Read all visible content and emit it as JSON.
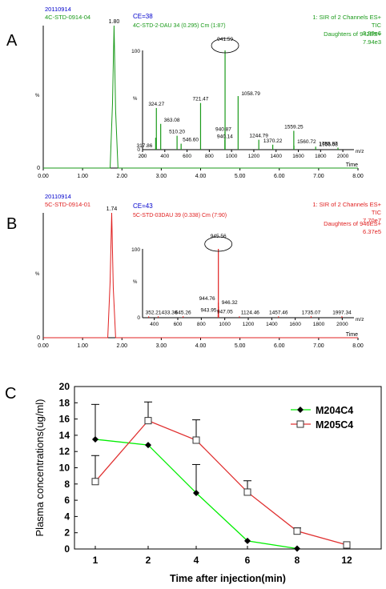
{
  "chart_data": [
    {
      "type": "line",
      "panel_label": "A",
      "date": "20110914",
      "sample": "4C-STD-0914-04",
      "channel": "1: SIR of 2 Channels ES+",
      "trace": "TIC",
      "intensity": "9.99e6",
      "ylabel": "%",
      "xlabel": "Time",
      "xlim": [
        0,
        8
      ],
      "xticks": [
        "0.00",
        "1.00",
        "2.00",
        "3.00",
        "4.00",
        "5.00",
        "6.00",
        "7.00",
        "8.00"
      ],
      "y_zero": "0",
      "peak_label": "1.80",
      "x": [
        0,
        1.7,
        1.76,
        1.8,
        1.84,
        1.9,
        8.0
      ],
      "y": [
        0,
        0,
        45,
        100,
        40,
        0,
        0
      ],
      "inset": {
        "type": "bar",
        "ce": "CE=38",
        "scan": "4C-STD-2-DAU 34 (0.295) Cm (1:87)",
        "daughters": "Daughters of 942ES+",
        "intensity": "7.94e3",
        "ylabel": "%",
        "xlabel": "m/z",
        "xlim": [
          200,
          2100
        ],
        "xticks": [
          "0",
          "200",
          "400",
          "600",
          "800",
          "1000",
          "1200",
          "1400",
          "1600",
          "1800",
          "2000"
        ],
        "yticks": [
          "0",
          "100"
        ],
        "circled_peak": "941.59",
        "peaks": [
          {
            "mz": 317.86,
            "label": "317.86",
            "value": 12
          },
          {
            "mz": 324.27,
            "label": "324.27",
            "value": 42
          },
          {
            "mz": 363.08,
            "label": "363.08",
            "value": 26
          },
          {
            "mz": 510.2,
            "label": "510.20",
            "value": 14
          },
          {
            "mz": 546.6,
            "label": "546.60",
            "value": 6
          },
          {
            "mz": 721.47,
            "label": "721.47",
            "value": 47
          },
          {
            "mz": 940.14,
            "label": "940.14",
            "value": 10
          },
          {
            "mz": 940.87,
            "label": "940.87",
            "value": 18
          },
          {
            "mz": 941.59,
            "label": "941.59",
            "value": 100
          },
          {
            "mz": 1058.79,
            "label": "1058.79",
            "value": 54
          },
          {
            "mz": 1244.79,
            "label": "1244.79",
            "value": 10
          },
          {
            "mz": 1370.22,
            "label": "1370.22",
            "value": 5
          },
          {
            "mz": 1559.25,
            "label": "1559.25",
            "value": 19
          },
          {
            "mz": 1560.72,
            "label": "1560.72",
            "value": 4
          },
          {
            "mz": 1755.87,
            "label": "1755.87",
            "value": 3
          },
          {
            "mz": 1956.08,
            "label": "1956.08",
            "value": 2
          }
        ]
      }
    },
    {
      "type": "line",
      "panel_label": "B",
      "date": "20110914",
      "sample": "5C-STD-0914-01",
      "channel": "1: SIR of 2 Channels ES+",
      "trace": "TIC",
      "intensity": "7.70e7",
      "ylabel": "%",
      "xlabel": "Time",
      "xlim": [
        0,
        8
      ],
      "xticks": [
        "0.00",
        "1.00",
        "2.00",
        "3.00",
        "4.00",
        "5.00",
        "6.00",
        "7.00",
        "8.00"
      ],
      "y_zero": "0",
      "peak_label": "1.74",
      "x": [
        0,
        1.64,
        1.7,
        1.74,
        1.78,
        1.84,
        8.0
      ],
      "y": [
        0,
        0,
        45,
        100,
        40,
        0,
        0
      ],
      "inset": {
        "type": "bar",
        "ce": "CE=43",
        "scan": "5C-STD-03DAU 39 (0.338) Cm (7:90)",
        "daughters": "Daughters of 946ES+",
        "intensity": "6.37e5",
        "ylabel": "%",
        "xlabel": "m/z",
        "xlim": [
          300,
          2100
        ],
        "xticks": [
          "400",
          "600",
          "800",
          "1000",
          "1200",
          "1400",
          "1600",
          "1800",
          "2000"
        ],
        "yticks": [
          "0",
          "100"
        ],
        "circled_peak": "945.56",
        "peaks": [
          {
            "mz": 352.21,
            "label": "352.21",
            "value": 2
          },
          {
            "mz": 433.36,
            "label": "433.36",
            "value": 2
          },
          {
            "mz": 645.26,
            "label": "645.26",
            "value": 2
          },
          {
            "mz": 943.95,
            "label": "943.95",
            "value": 5
          },
          {
            "mz": 944.76,
            "label": "944.76",
            "value": 22
          },
          {
            "mz": 945.56,
            "label": "945.56",
            "value": 100
          },
          {
            "mz": 946.32,
            "label": "946.32",
            "value": 16
          },
          {
            "mz": 947.05,
            "label": "947.05",
            "value": 3
          },
          {
            "mz": 1124.46,
            "label": "1124.46",
            "value": 2
          },
          {
            "mz": 1457.46,
            "label": "1457.46",
            "value": 2
          },
          {
            "mz": 1735.07,
            "label": "1735.07",
            "value": 2
          },
          {
            "mz": 1997.34,
            "label": "1997.34",
            "value": 2
          }
        ]
      }
    },
    {
      "type": "line",
      "panel_label": "C",
      "xlabel": "Time after injection(min)",
      "ylabel": "Plasma concentrations(ug/ml)",
      "categories": [
        "1",
        "2",
        "4",
        "6",
        "8",
        "12"
      ],
      "ylim": [
        0,
        20
      ],
      "yticks": [
        "0",
        "2",
        "4",
        "6",
        "8",
        "10",
        "12",
        "14",
        "16",
        "18",
        "20"
      ],
      "legend_position": "top-right",
      "series": [
        {
          "name": "M204C4",
          "color": "#00ee00",
          "marker": "diamond",
          "values": [
            13.5,
            12.8,
            6.9,
            1.0,
            0.05,
            null
          ],
          "error": [
            4.3,
            null,
            3.5,
            null,
            null,
            null
          ]
        },
        {
          "name": "M205C4",
          "color": "#e03030",
          "marker": "square",
          "values": [
            8.3,
            15.8,
            13.4,
            7.0,
            2.2,
            0.5
          ],
          "error": [
            3.2,
            2.3,
            2.5,
            1.4,
            0.4,
            null
          ]
        }
      ]
    }
  ]
}
